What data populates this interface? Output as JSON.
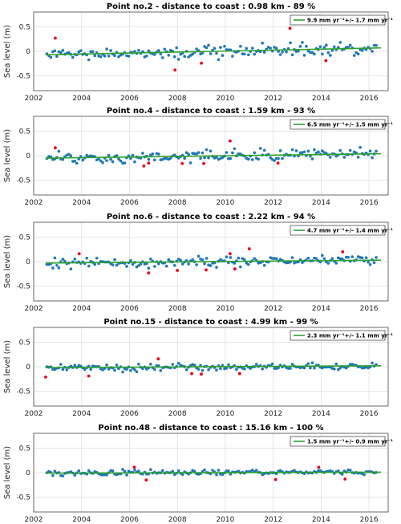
{
  "colors": {
    "normal": "#1f77b4",
    "outlier": "#e8001c",
    "trend": "#2ca02c",
    "grid": "#dcdcdc"
  },
  "ylabel": "Sea level (m)",
  "xticks": [
    2002,
    2004,
    2006,
    2008,
    2010,
    2012,
    2014,
    2016
  ],
  "yticks": [
    0.5,
    0,
    -0.5
  ],
  "chart_data": [
    {
      "type": "scatter",
      "title": "Point no.2 - distance to coast : 0.98 km - 89 %",
      "legend": "9.9 mm yr⁻¹+/- 1.7 mm yr⁻¹",
      "xlim": [
        2002,
        2016.8
      ],
      "ylim": [
        -0.8,
        0.8
      ],
      "trend": [
        [
          2002.5,
          -0.07
        ],
        [
          2016.5,
          0.07
        ]
      ],
      "outliers": [
        [
          2002.9,
          0.27
        ],
        [
          2007.9,
          -0.38
        ],
        [
          2009.0,
          -0.24
        ],
        [
          2012.7,
          0.47
        ],
        [
          2014.2,
          -0.19
        ]
      ],
      "seed": 2,
      "noise": 0.09
    },
    {
      "type": "scatter",
      "title": "Point no.4 - distance to coast : 1.59 km - 93 %",
      "legend": "6.5 mm yr⁻¹+/- 1.5 mm yr⁻¹",
      "xlim": [
        2002,
        2016.8
      ],
      "ylim": [
        -0.8,
        0.8
      ],
      "trend": [
        [
          2002.5,
          -0.05
        ],
        [
          2016.5,
          0.04
        ]
      ],
      "outliers": [
        [
          2002.9,
          0.16
        ],
        [
          2006.6,
          -0.21
        ],
        [
          2006.8,
          -0.15
        ],
        [
          2008.2,
          -0.16
        ],
        [
          2009.1,
          -0.16
        ],
        [
          2010.2,
          0.3
        ],
        [
          2012.2,
          -0.15
        ]
      ],
      "seed": 4,
      "noise": 0.08
    },
    {
      "type": "scatter",
      "title": "Point no.6 - distance to coast : 2.22 km - 94 %",
      "legend": "4.7 mm yr⁻¹+/- 1.4 mm yr⁻¹",
      "xlim": [
        2002,
        2016.8
      ],
      "ylim": [
        -0.8,
        0.8
      ],
      "trend": [
        [
          2002.5,
          -0.03
        ],
        [
          2016.5,
          0.03
        ]
      ],
      "outliers": [
        [
          2003.9,
          0.16
        ],
        [
          2006.8,
          -0.23
        ],
        [
          2008.0,
          -0.18
        ],
        [
          2009.2,
          -0.17
        ],
        [
          2010.2,
          0.16
        ],
        [
          2010.4,
          -0.15
        ],
        [
          2011.0,
          0.26
        ],
        [
          2014.9,
          0.2
        ]
      ],
      "seed": 6,
      "noise": 0.07
    },
    {
      "type": "scatter",
      "title": "Point no.15 - distance to coast : 4.99 km - 99 %",
      "legend": "2.3 mm yr⁻¹+/- 1.1 mm yr⁻¹",
      "xlim": [
        2002,
        2016.8
      ],
      "ylim": [
        -0.8,
        0.8
      ],
      "trend": [
        [
          2002.5,
          -0.02
        ],
        [
          2016.5,
          0.02
        ]
      ],
      "outliers": [
        [
          2002.5,
          -0.21
        ],
        [
          2004.3,
          -0.19
        ],
        [
          2007.2,
          0.16
        ],
        [
          2008.6,
          -0.14
        ],
        [
          2009.0,
          -0.15
        ],
        [
          2010.6,
          -0.14
        ]
      ],
      "seed": 15,
      "noise": 0.055
    },
    {
      "type": "scatter",
      "title": "Point no.48 - distance to coast : 15.16 km - 100 %",
      "legend": "1.5 mm yr⁻¹+/- 0.9 mm yr⁻¹",
      "xlim": [
        2002,
        2016.8
      ],
      "ylim": [
        -0.8,
        0.8
      ],
      "trend": [
        [
          2002.5,
          -0.01
        ],
        [
          2016.5,
          0.01
        ]
      ],
      "outliers": [
        [
          2006.2,
          0.11
        ],
        [
          2006.7,
          -0.15
        ],
        [
          2012.1,
          -0.14
        ],
        [
          2013.9,
          0.11
        ],
        [
          2015.0,
          -0.13
        ]
      ],
      "seed": 48,
      "noise": 0.04
    }
  ]
}
